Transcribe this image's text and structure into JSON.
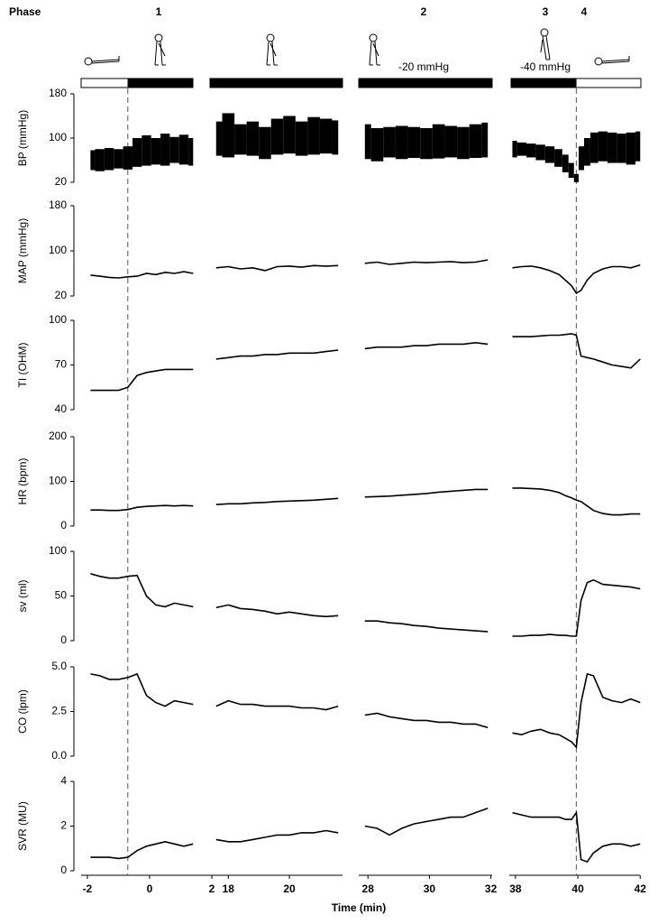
{
  "phase_header": {
    "label": "Phase",
    "phases": [
      "1",
      "2",
      "3",
      "4"
    ],
    "annotations": [
      "-20 mmHg",
      "-40 mmHg"
    ]
  },
  "chart_data": {
    "type": "line",
    "xlabel": "Time (min)",
    "color": "#000000",
    "markers": [
      -0.7,
      39.95
    ],
    "segments": [
      {
        "xlim": [
          -2.2,
          2.0
        ],
        "xticks": [
          -2,
          0,
          2
        ],
        "x": [
          -1.9,
          -1.6,
          -1.3,
          -1.0,
          -0.7,
          -0.4,
          -0.1,
          0.2,
          0.5,
          0.8,
          1.1,
          1.4
        ]
      },
      {
        "xlim": [
          17.4,
          21.8
        ],
        "xticks": [
          18,
          20
        ],
        "x": [
          17.6,
          18.0,
          18.4,
          18.8,
          19.2,
          19.6,
          20.0,
          20.4,
          20.8,
          21.2,
          21.6
        ]
      },
      {
        "xlim": [
          27.7,
          32.1
        ],
        "xticks": [
          28,
          30,
          32
        ],
        "x": [
          27.9,
          28.3,
          28.7,
          29.1,
          29.5,
          29.9,
          30.3,
          30.7,
          31.1,
          31.5,
          31.9
        ]
      },
      {
        "xlim": [
          37.8,
          42.05
        ],
        "xticks": [
          38,
          40,
          42
        ],
        "x": [
          37.9,
          38.2,
          38.5,
          38.8,
          39.1,
          39.4,
          39.6,
          39.8,
          39.95,
          40.1,
          40.3,
          40.5,
          40.8,
          41.1,
          41.4,
          41.7,
          42.0
        ]
      }
    ],
    "rows": [
      {
        "type": "range",
        "ylabel": "BP (mmHg)",
        "ylim": [
          20,
          180
        ],
        "yticks": [
          20,
          100,
          180
        ],
        "upper": [
          [
            78,
            80,
            82,
            80,
            85,
            100,
            105,
            100,
            108,
            102,
            106,
            100
          ],
          [
            130,
            145,
            125,
            130,
            120,
            135,
            140,
            130,
            138,
            135,
            132
          ],
          [
            125,
            118,
            120,
            122,
            120,
            118,
            125,
            122,
            120,
            125,
            128
          ],
          [
            95,
            92,
            90,
            88,
            85,
            80,
            70,
            55,
            35,
            85,
            100,
            110,
            112,
            110,
            108,
            110,
            112
          ]
        ],
        "lower": [
          [
            42,
            40,
            42,
            45,
            43,
            48,
            50,
            52,
            50,
            55,
            52,
            50
          ],
          [
            68,
            65,
            70,
            68,
            62,
            70,
            72,
            68,
            70,
            72,
            70
          ],
          [
            62,
            58,
            65,
            62,
            64,
            62,
            63,
            65,
            62,
            64,
            65
          ],
          [
            65,
            68,
            65,
            60,
            55,
            48,
            38,
            28,
            20,
            42,
            50,
            55,
            58,
            55,
            55,
            52,
            58
          ]
        ]
      },
      {
        "type": "line",
        "ylabel": "MAP (mmHg)",
        "ylim": [
          20,
          180
        ],
        "yticks": [
          20,
          100,
          180
        ],
        "values": [
          [
            57,
            55,
            53,
            52,
            54,
            55,
            60,
            58,
            62,
            60,
            63,
            60
          ],
          [
            70,
            72,
            68,
            70,
            65,
            72,
            73,
            71,
            74,
            73,
            74
          ],
          [
            78,
            80,
            76,
            78,
            80,
            79,
            80,
            81,
            79,
            80,
            84
          ],
          [
            70,
            72,
            73,
            70,
            65,
            58,
            48,
            38,
            25,
            30,
            48,
            60,
            68,
            72,
            72,
            70,
            75
          ]
        ]
      },
      {
        "type": "line",
        "ylabel": "TI (OHM)",
        "ylim": [
          40,
          100
        ],
        "yticks": [
          40,
          70,
          100
        ],
        "values": [
          [
            53,
            53,
            53,
            53,
            55,
            63,
            65,
            66,
            67,
            67,
            67,
            67
          ],
          [
            74,
            75,
            76,
            76,
            77,
            77,
            78,
            78,
            78,
            79,
            80
          ],
          [
            81,
            82,
            82,
            82,
            83,
            83,
            84,
            84,
            84,
            85,
            84
          ],
          [
            89,
            89,
            89,
            89.5,
            90,
            90,
            90.5,
            91,
            90,
            76,
            75,
            74,
            72,
            70,
            69,
            68,
            74
          ]
        ]
      },
      {
        "type": "line",
        "ylabel": "HR (bpm)",
        "ylim": [
          0,
          200
        ],
        "yticks": [
          0,
          100,
          200
        ],
        "values": [
          [
            36,
            36,
            35,
            35,
            37,
            42,
            44,
            45,
            46,
            45,
            46,
            45
          ],
          [
            48,
            50,
            50,
            52,
            53,
            55,
            56,
            57,
            58,
            60,
            62
          ],
          [
            65,
            66,
            67,
            69,
            71,
            73,
            76,
            78,
            80,
            82,
            82
          ],
          [
            85,
            85,
            84,
            83,
            80,
            75,
            68,
            63,
            58,
            55,
            45,
            35,
            28,
            25,
            25,
            27,
            27
          ]
        ]
      },
      {
        "type": "line",
        "ylabel": "sv (ml)",
        "ylim": [
          0,
          100
        ],
        "yticks": [
          0,
          50,
          100
        ],
        "values": [
          [
            75,
            72,
            70,
            70,
            72,
            73,
            50,
            40,
            38,
            42,
            40,
            38
          ],
          [
            37,
            40,
            36,
            35,
            33,
            30,
            32,
            30,
            28,
            27,
            28
          ],
          [
            22,
            22,
            20,
            19,
            17,
            16,
            14,
            13,
            12,
            11,
            10
          ],
          [
            5,
            5,
            6,
            6,
            7,
            6,
            6,
            5,
            5,
            45,
            65,
            68,
            63,
            62,
            61,
            60,
            58
          ]
        ]
      },
      {
        "type": "line",
        "ylabel": "CO (lpm)",
        "ylim": [
          0,
          5
        ],
        "yticks": [
          {
            "value": 0,
            "label": "0.0"
          },
          {
            "value": 2.5,
            "label": "2.5"
          },
          {
            "value": 5,
            "label": "5.0"
          }
        ],
        "values": [
          [
            4.6,
            4.5,
            4.3,
            4.3,
            4.4,
            4.6,
            3.4,
            3.0,
            2.8,
            3.1,
            3.0,
            2.9
          ],
          [
            2.8,
            3.1,
            2.9,
            2.9,
            2.8,
            2.8,
            2.8,
            2.7,
            2.7,
            2.6,
            2.8
          ],
          [
            2.3,
            2.4,
            2.2,
            2.1,
            2.0,
            2.0,
            1.9,
            1.9,
            1.8,
            1.8,
            1.6
          ],
          [
            1.3,
            1.2,
            1.4,
            1.5,
            1.3,
            1.2,
            1.0,
            0.8,
            0.5,
            3.0,
            4.6,
            4.5,
            3.3,
            3.1,
            3.0,
            3.2,
            3.0
          ]
        ]
      },
      {
        "type": "line",
        "ylabel": "SVR (MU)",
        "ylim": [
          0,
          4
        ],
        "yticks": [
          0,
          2,
          4
        ],
        "values": [
          [
            0.6,
            0.6,
            0.6,
            0.55,
            0.6,
            0.9,
            1.1,
            1.2,
            1.3,
            1.2,
            1.1,
            1.2
          ],
          [
            1.4,
            1.3,
            1.3,
            1.4,
            1.5,
            1.6,
            1.6,
            1.7,
            1.7,
            1.8,
            1.7
          ],
          [
            2.0,
            1.9,
            1.6,
            1.9,
            2.1,
            2.2,
            2.3,
            2.4,
            2.4,
            2.6,
            2.8
          ],
          [
            2.6,
            2.5,
            2.4,
            2.4,
            2.4,
            2.4,
            2.3,
            2.3,
            2.6,
            0.5,
            0.4,
            0.8,
            1.1,
            1.2,
            1.2,
            1.1,
            1.2
          ]
        ]
      }
    ]
  }
}
